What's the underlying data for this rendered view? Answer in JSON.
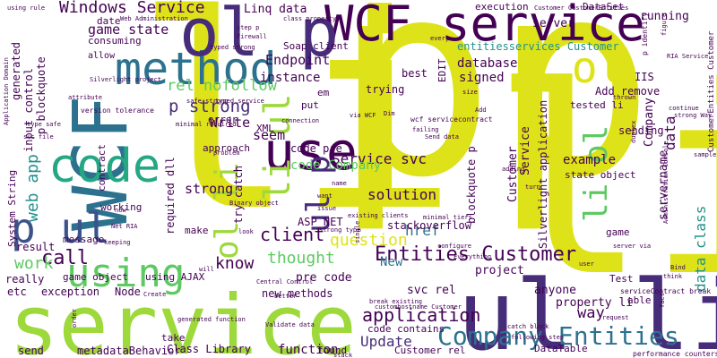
{
  "palette": {
    "yellow": "#dde318",
    "lime": "#9dd93b",
    "green": "#5ec962",
    "teal": "#21918c",
    "seagreen": "#26a784",
    "cyan": "#2c728e",
    "blue": "#3b528b",
    "indigo": "#472c7a",
    "purple": "#440154"
  },
  "words": [
    {
      "text": "li",
      "color": "yellow"
    },
    {
      "text": "p",
      "color": "yellow"
    },
    {
      "text": "p",
      "color": "yellow"
    },
    {
      "text": "li",
      "color": "yellow"
    },
    {
      "text": "service",
      "color": "lime"
    },
    {
      "text": "ul li",
      "color": "indigo"
    },
    {
      "text": "WCF service",
      "color": "purple"
    },
    {
      "text": "WCF",
      "color": "cyan"
    },
    {
      "text": "method",
      "color": "cyan"
    },
    {
      "text": "ol p",
      "color": "indigo"
    },
    {
      "text": "p ol",
      "color": "yellow"
    },
    {
      "text": "code",
      "color": "seagreen"
    },
    {
      "text": "using",
      "color": "green"
    },
    {
      "text": "p ul",
      "color": "blue"
    },
    {
      "text": "use",
      "color": "purple"
    },
    {
      "text": "ol li",
      "color": "lime"
    },
    {
      "text": "ul p",
      "color": "indigo"
    },
    {
      "text": "li ul",
      "color": "lime"
    },
    {
      "text": "li ol",
      "color": "green"
    },
    {
      "text": "Company Entities",
      "color": "cyan"
    },
    {
      "text": "Entities Customer",
      "color": "purple"
    },
    {
      "text": "application",
      "color": "purple"
    },
    {
      "text": "question",
      "color": "yellow"
    },
    {
      "text": "call",
      "color": "purple"
    },
    {
      "text": "Windows Service",
      "color": "purple"
    },
    {
      "text": "game state",
      "color": "purple"
    },
    {
      "text": "Linq data",
      "color": "purple"
    },
    {
      "text": "Endpoint",
      "color": "purple"
    },
    {
      "text": "instance",
      "color": "purple"
    },
    {
      "text": "client",
      "color": "purple"
    },
    {
      "text": "rel nofollow",
      "color": "green"
    },
    {
      "text": "p strong",
      "color": "indigo"
    },
    {
      "text": "Write",
      "color": "purple"
    },
    {
      "text": "work",
      "color": "green"
    },
    {
      "text": "know",
      "color": "purple"
    },
    {
      "text": "thought",
      "color": "green"
    },
    {
      "text": "web app",
      "color": "teal"
    },
    {
      "text": "Service svc",
      "color": "purple"
    },
    {
      "text": "solution",
      "color": "purple"
    },
    {
      "text": "strong",
      "color": "purple"
    },
    {
      "text": "code Company",
      "color": "green"
    },
    {
      "text": "pre code",
      "color": "purple"
    },
    {
      "text": "way",
      "color": "purple"
    },
    {
      "text": "Update",
      "color": "indigo"
    },
    {
      "text": "href",
      "color": "cyan"
    },
    {
      "text": "New",
      "color": "cyan"
    },
    {
      "text": "project",
      "color": "purple"
    },
    {
      "text": "anyone",
      "color": "purple"
    },
    {
      "text": "property li",
      "color": "purple"
    },
    {
      "text": "example",
      "color": "purple"
    },
    {
      "text": "database",
      "color": "purple"
    },
    {
      "text": "signed",
      "color": "purple"
    },
    {
      "text": "entitiesservices Customer",
      "color": "teal"
    },
    {
      "text": "server",
      "color": "purple"
    },
    {
      "text": "DataSet",
      "color": "purple"
    },
    {
      "text": "running",
      "color": "purple"
    },
    {
      "text": "execution",
      "color": "purple"
    },
    {
      "text": "data class",
      "color": "teal"
    },
    {
      "text": "data",
      "color": "purple"
    },
    {
      "text": "best",
      "color": "purple"
    },
    {
      "text": "trying",
      "color": "purple"
    },
    {
      "text": "Add remove",
      "color": "purple"
    },
    {
      "text": "tested li",
      "color": "purple"
    },
    {
      "text": "IIS",
      "color": "purple"
    },
    {
      "text": "Soap client",
      "color": "purple"
    },
    {
      "text": "put",
      "color": "purple"
    },
    {
      "text": "seem",
      "color": "purple"
    },
    {
      "text": "XML",
      "color": "purple"
    },
    {
      "text": "sending",
      "color": "purple"
    },
    {
      "text": "state object",
      "color": "purple"
    },
    {
      "text": "code pre",
      "color": "purple"
    },
    {
      "text": "try catch",
      "color": "purple"
    },
    {
      "text": "ASP NET",
      "color": "purple"
    },
    {
      "text": "svc rel",
      "color": "purple"
    },
    {
      "text": "stackoverflow",
      "color": "purple"
    },
    {
      "text": "exception",
      "color": "purple"
    },
    {
      "text": "Node",
      "color": "purple"
    },
    {
      "text": "new methods",
      "color": "purple"
    },
    {
      "text": "function",
      "color": "purple"
    },
    {
      "text": "metadataBehavior",
      "color": "purple"
    },
    {
      "text": "Class Library",
      "color": "purple"
    },
    {
      "text": "send",
      "color": "purple"
    },
    {
      "text": "take",
      "color": "purple"
    },
    {
      "text": "result",
      "color": "purple"
    },
    {
      "text": "etc",
      "color": "purple"
    },
    {
      "text": "really",
      "color": "purple"
    },
    {
      "text": "game object",
      "color": "purple"
    },
    {
      "text": "using AJAX",
      "color": "purple"
    },
    {
      "text": "make",
      "color": "purple"
    },
    {
      "text": "required dll",
      "color": "purple"
    },
    {
      "text": "approach",
      "color": "purple"
    },
    {
      "text": "error",
      "color": "purple"
    },
    {
      "text": "message",
      "color": "purple"
    },
    {
      "text": "System String",
      "color": "purple"
    },
    {
      "text": "working",
      "color": "purple"
    },
    {
      "text": "contract",
      "color": "purple"
    },
    {
      "text": "consuming",
      "color": "purple"
    },
    {
      "text": "generated",
      "color": "purple"
    },
    {
      "text": "input control",
      "color": "purple"
    },
    {
      "text": "p blockquote",
      "color": "purple"
    },
    {
      "text": "blockquote p",
      "color": "purple"
    },
    {
      "text": "Silverlight application",
      "color": "purple"
    },
    {
      "text": "code contains",
      "color": "purple"
    },
    {
      "text": "Customer rel",
      "color": "purple"
    },
    {
      "text": "servername",
      "color": "purple"
    },
    {
      "text": "Company",
      "color": "purple"
    },
    {
      "text": "Customer",
      "color": "purple"
    },
    {
      "text": "Service",
      "color": "purple"
    },
    {
      "text": "game",
      "color": "purple"
    },
    {
      "text": "able",
      "color": "purple"
    },
    {
      "text": "DataTable",
      "color": "purple"
    },
    {
      "text": "Test",
      "color": "purple"
    },
    {
      "text": "EDIT",
      "color": "purple"
    },
    {
      "text": "em",
      "color": "purple"
    },
    {
      "text": "date",
      "color": "purple"
    },
    {
      "text": "allow",
      "color": "purple"
    },
    {
      "text": "found",
      "color": "purple"
    },
    {
      "text": "wcf servicecontract",
      "color": "purple"
    },
    {
      "text": "serviceContract break",
      "color": "purple"
    },
    {
      "text": "Customer CustomerEntities",
      "color": "purple"
    },
    {
      "text": "CustomerEntities Customer",
      "color": "purple"
    },
    {
      "text": "performance counters",
      "color": "purple"
    },
    {
      "text": "Web Administration",
      "color": "purple"
    },
    {
      "text": "Administration Console",
      "color": "purple"
    },
    {
      "text": "strong Way",
      "color": "purple"
    },
    {
      "text": "typed strong",
      "color": "purple"
    },
    {
      "text": "version tolerance",
      "color": "purple"
    },
    {
      "text": "Central Control",
      "color": "purple"
    },
    {
      "text": "generated function",
      "color": "purple"
    },
    {
      "text": "existing clients",
      "color": "purple"
    },
    {
      "text": "break existing",
      "color": "purple"
    },
    {
      "text": "Validate data",
      "color": "purple"
    },
    {
      "text": "minimal tiers",
      "color": "purple"
    },
    {
      "text": "class property",
      "color": "purple"
    },
    {
      "text": "Silverlight project",
      "color": "purple"
    },
    {
      "text": "RIA Service",
      "color": "purple"
    },
    {
      "text": "using rule",
      "color": "purple"
    },
    {
      "text": "Firewall",
      "color": "purple"
    },
    {
      "text": "step p",
      "color": "purple"
    },
    {
      "text": "every",
      "color": "purple"
    },
    {
      "text": "figure",
      "color": "purple"
    },
    {
      "text": "p identify",
      "color": "purple"
    },
    {
      "text": "continue",
      "color": "purple"
    },
    {
      "text": "thrown",
      "color": "purple"
    },
    {
      "text": "connection",
      "color": "purple"
    },
    {
      "text": "failing",
      "color": "purple"
    },
    {
      "text": "Send data",
      "color": "purple"
    },
    {
      "text": "Add",
      "color": "purple"
    },
    {
      "text": "attribute",
      "color": "purple"
    },
    {
      "text": "type safe",
      "color": "purple"
    },
    {
      "text": "svc file",
      "color": "purple"
    },
    {
      "text": "Create",
      "color": "purple"
    },
    {
      "text": "better",
      "color": "purple"
    },
    {
      "text": "problem",
      "color": "purple"
    },
    {
      "text": "name",
      "color": "purple"
    },
    {
      "text": "want",
      "color": "purple"
    },
    {
      "text": "issue",
      "color": "purple"
    },
    {
      "text": "look",
      "color": "purple"
    },
    {
      "text": "keeping",
      "color": "purple"
    },
    {
      "text": "configure",
      "color": "purple"
    },
    {
      "text": "Everything",
      "color": "purple"
    },
    {
      "text": "single",
      "color": "purple"
    },
    {
      "text": "adding",
      "color": "purple"
    },
    {
      "text": "turn",
      "color": "purple"
    },
    {
      "text": "user",
      "color": "purple"
    },
    {
      "text": "think",
      "color": "purple"
    },
    {
      "text": "request",
      "color": "purple"
    },
    {
      "text": "Bind",
      "color": "purple"
    },
    {
      "text": "fact",
      "color": "purple"
    },
    {
      "text": "catch block",
      "color": "purple"
    },
    {
      "text": "following step",
      "color": "purple"
    },
    {
      "text": "sample",
      "color": "purple"
    },
    {
      "text": "server via",
      "color": "purple"
    },
    {
      "text": "duplex",
      "color": "purple"
    },
    {
      "text": "size",
      "color": "purple"
    },
    {
      "text": "now",
      "color": "purple"
    },
    {
      "text": "Dim",
      "color": "purple"
    },
    {
      "text": "stack",
      "color": "purple"
    },
    {
      "text": "order",
      "color": "purple"
    },
    {
      "text": "will",
      "color": "purple"
    },
    {
      "text": "Net RIA",
      "color": "purple"
    },
    {
      "text": "strong type",
      "color": "purple"
    },
    {
      "text": "minimal required",
      "color": "purple"
    },
    {
      "text": "typed service",
      "color": "purple"
    },
    {
      "text": "Application Domain",
      "color": "purple"
    },
    {
      "text": "customhostname Customer",
      "color": "purple"
    },
    {
      "text": "via WCF",
      "color": "purple"
    },
    {
      "text": "safe strong",
      "color": "purple"
    },
    {
      "text": "Binary object",
      "color": "purple"
    }
  ]
}
